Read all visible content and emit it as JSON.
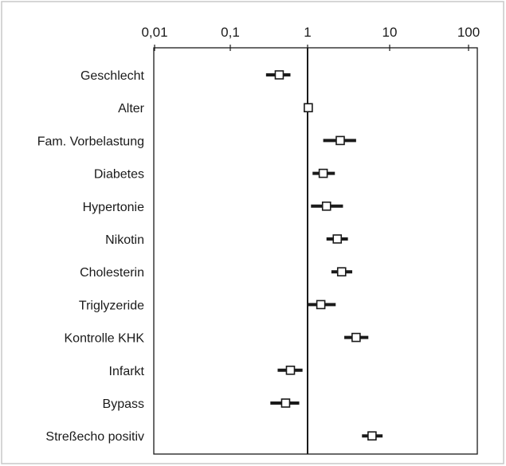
{
  "chart_data": {
    "type": "forest",
    "scale": "log",
    "xlim": [
      0.01,
      100
    ],
    "xticks": [
      "0,01",
      "0,1",
      "1",
      "10",
      "100"
    ],
    "tick_values": [
      0.01,
      0.1,
      1,
      10,
      100
    ],
    "reference_line": 1,
    "xlabel": "",
    "ylabel": "",
    "title": "",
    "categories": [
      "Geschlecht",
      "Alter",
      "Fam. Vorbelastung",
      "Diabetes",
      "Hypertonie",
      "Nikotin",
      "Cholesterin",
      "Triglyzeride",
      "Kontrolle KHK",
      "Infarkt",
      "Bypass",
      "Streßecho positiv"
    ],
    "estimates": [
      0.43,
      1.02,
      2.5,
      1.55,
      1.7,
      2.3,
      2.6,
      1.45,
      3.9,
      0.6,
      0.52,
      6.1
    ],
    "lower": [
      0.29,
      0.98,
      1.55,
      1.15,
      1.1,
      1.7,
      1.95,
      1.0,
      2.8,
      0.41,
      0.33,
      4.6
    ],
    "upper": [
      0.6,
      1.06,
      3.9,
      2.15,
      2.7,
      3.1,
      3.5,
      2.2,
      5.5,
      0.86,
      0.78,
      8.2
    ],
    "grid": false,
    "colors": {
      "line": "#1a1a1a",
      "marker_fill": "#ffffff",
      "frame": "#1a1a1a",
      "outer_frame": "#c8c8c8"
    }
  }
}
